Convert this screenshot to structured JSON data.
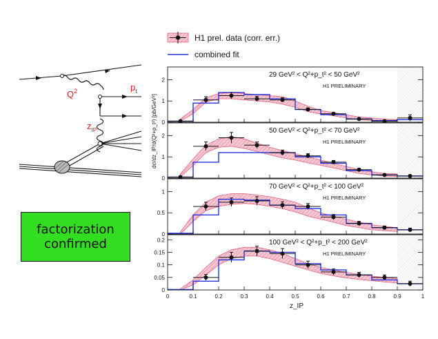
{
  "legend": {
    "data_label": "H1 prel. data (corr. err.)",
    "fit_label": "combined fit"
  },
  "diagram": {
    "label_q2": "Q",
    "label_q2_sup": "2",
    "label_pt": "p",
    "label_pt_sub": "t",
    "label_z": "z",
    "label_z_sub": "IP"
  },
  "box": {
    "line1": "factorization",
    "line2": "confirmed"
  },
  "colors": {
    "band_stroke": "#e0607a",
    "band_fill": "#f6c9d2",
    "fit_line": "#2233dd",
    "label_red": "#e02020",
    "box_green": "#33dd22"
  },
  "chart_data": {
    "type": "line",
    "xlabel": "z_IP",
    "ylabel": "dσ/dz_IP/d(Q²+p_t²) [pb/GeV²]",
    "xlim": [
      0,
      1
    ],
    "x_ticks": [
      "0",
      "0.1",
      "0.2",
      "0.3",
      "0.4",
      "0.5",
      "0.6",
      "0.7",
      "0.8",
      "0.9",
      "1"
    ],
    "shaded_region": [
      0.9,
      1.0
    ],
    "panels": [
      {
        "label": "29 GeV² < Q²+p_t² < 50 GeV²",
        "preliminary": "H1 PRELIMINARY",
        "ylim": [
          0,
          2.6
        ],
        "y_ticks": [
          0,
          1,
          2
        ],
        "y_tick_labels": [
          "0",
          "1",
          "2"
        ],
        "points": [
          {
            "x": 0.05,
            "y": 0.05,
            "err": 0.03
          },
          {
            "x": 0.15,
            "y": 1.05,
            "err": 0.15
          },
          {
            "x": 0.25,
            "y": 1.25,
            "err": 0.15
          },
          {
            "x": 0.35,
            "y": 1.1,
            "err": 0.12
          },
          {
            "x": 0.45,
            "y": 1.05,
            "err": 0.1
          },
          {
            "x": 0.55,
            "y": 0.6,
            "err": 0.07
          },
          {
            "x": 0.65,
            "y": 0.4,
            "err": 0.05
          },
          {
            "x": 0.75,
            "y": 0.15,
            "err": 0.04
          },
          {
            "x": 0.85,
            "y": 0.05,
            "err": 0.04
          },
          {
            "x": 0.95,
            "y": 0.2,
            "err": 0.15
          }
        ],
        "fit_edges": [
          0,
          0.1,
          0.2,
          0.3,
          0.4,
          0.5,
          0.6,
          0.7,
          0.8,
          0.9,
          1.0
        ],
        "fit_values": [
          0.05,
          0.9,
          1.4,
          1.3,
          1.1,
          0.6,
          0.35,
          0.15,
          0.08,
          0.12
        ],
        "band_x": [
          0.05,
          0.1,
          0.15,
          0.2,
          0.25,
          0.3,
          0.35,
          0.4,
          0.45,
          0.5,
          0.55,
          0.6,
          0.65,
          0.7,
          0.75,
          0.8,
          0.85,
          0.9
        ],
        "band_hi": [
          0.15,
          0.6,
          1.15,
          1.35,
          1.4,
          1.35,
          1.3,
          1.25,
          1.2,
          1.0,
          0.75,
          0.55,
          0.45,
          0.35,
          0.25,
          0.2,
          0.15,
          0.12
        ],
        "band_lo": [
          0.05,
          0.4,
          0.95,
          1.1,
          1.1,
          1.05,
          1.0,
          0.95,
          0.85,
          0.7,
          0.5,
          0.38,
          0.3,
          0.2,
          0.12,
          0.08,
          0.05,
          0.05
        ]
      },
      {
        "label": "50 GeV² < Q²+p_t² < 70 GeV²",
        "preliminary": "H1 PRELIMINARY",
        "ylim": [
          0,
          2.6
        ],
        "y_ticks": [
          0,
          1,
          2
        ],
        "y_tick_labels": [
          "0",
          "1",
          "2"
        ],
        "points": [
          {
            "x": 0.05,
            "y": 0.05,
            "err": 0.03
          },
          {
            "x": 0.15,
            "y": 1.5,
            "err": 0.2
          },
          {
            "x": 0.25,
            "y": 1.9,
            "err": 0.25
          },
          {
            "x": 0.35,
            "y": 1.55,
            "err": 0.15
          },
          {
            "x": 0.45,
            "y": 1.2,
            "err": 0.12
          },
          {
            "x": 0.55,
            "y": 1.05,
            "err": 0.1
          },
          {
            "x": 0.65,
            "y": 0.75,
            "err": 0.08
          },
          {
            "x": 0.75,
            "y": 0.4,
            "err": 0.06
          },
          {
            "x": 0.85,
            "y": 0.15,
            "err": 0.04
          },
          {
            "x": 0.95,
            "y": 0.1,
            "err": 0.05
          }
        ],
        "fit_edges": [
          0,
          0.1,
          0.2,
          0.3,
          0.4,
          0.5,
          0.6,
          0.7,
          0.8,
          0.9,
          1.0
        ],
        "fit_values": [
          0.05,
          0.75,
          1.2,
          1.2,
          1.2,
          1.0,
          0.7,
          0.35,
          0.15,
          0.1
        ],
        "band_x": [
          0.05,
          0.1,
          0.15,
          0.2,
          0.25,
          0.3,
          0.35,
          0.4,
          0.45,
          0.5,
          0.55,
          0.6,
          0.65,
          0.7,
          0.75,
          0.8,
          0.85,
          0.9
        ],
        "band_hi": [
          0.2,
          0.9,
          1.55,
          1.85,
          1.95,
          1.85,
          1.65,
          1.45,
          1.3,
          1.15,
          1.0,
          0.85,
          0.7,
          0.55,
          0.4,
          0.3,
          0.22,
          0.2
        ],
        "band_lo": [
          0.05,
          0.6,
          1.2,
          1.45,
          1.5,
          1.4,
          1.25,
          1.1,
          0.95,
          0.85,
          0.72,
          0.6,
          0.48,
          0.35,
          0.22,
          0.15,
          0.1,
          0.08
        ]
      },
      {
        "label": "70 GeV² < Q²+p_t² < 100 GeV²",
        "preliminary": "H1 PRELIMINARY",
        "ylim": [
          0,
          1.3
        ],
        "y_ticks": [
          0,
          0.5,
          1
        ],
        "y_tick_labels": [
          "0",
          "0.5",
          "1"
        ],
        "points": [
          {
            "x": 0.15,
            "y": 0.65,
            "err": 0.1
          },
          {
            "x": 0.25,
            "y": 0.75,
            "err": 0.1
          },
          {
            "x": 0.35,
            "y": 0.78,
            "err": 0.1
          },
          {
            "x": 0.45,
            "y": 0.68,
            "err": 0.08
          },
          {
            "x": 0.55,
            "y": 0.65,
            "err": 0.07
          },
          {
            "x": 0.65,
            "y": 0.4,
            "err": 0.06
          },
          {
            "x": 0.75,
            "y": 0.25,
            "err": 0.05
          },
          {
            "x": 0.85,
            "y": 0.15,
            "err": 0.04
          },
          {
            "x": 0.95,
            "y": 0.1,
            "err": 0.04
          }
        ],
        "fit_edges": [
          0,
          0.1,
          0.2,
          0.3,
          0.4,
          0.5,
          0.6,
          0.7,
          0.8,
          0.9,
          1.0
        ],
        "fit_values": [
          0.02,
          0.45,
          0.82,
          0.8,
          0.68,
          0.6,
          0.45,
          0.25,
          0.15,
          0.1
        ],
        "band_x": [
          0.05,
          0.1,
          0.15,
          0.2,
          0.25,
          0.3,
          0.35,
          0.4,
          0.45,
          0.5,
          0.55,
          0.6,
          0.65,
          0.7,
          0.75,
          0.8,
          0.85,
          0.9
        ],
        "band_hi": [
          0.05,
          0.45,
          0.75,
          0.9,
          0.95,
          0.95,
          0.92,
          0.88,
          0.82,
          0.75,
          0.62,
          0.5,
          0.42,
          0.35,
          0.28,
          0.22,
          0.18,
          0.15
        ],
        "band_lo": [
          0.0,
          0.3,
          0.55,
          0.65,
          0.7,
          0.72,
          0.7,
          0.65,
          0.6,
          0.52,
          0.42,
          0.35,
          0.28,
          0.2,
          0.15,
          0.1,
          0.08,
          0.06
        ]
      },
      {
        "label": "100 GeV² < Q²+p_t² < 200 GeV²",
        "preliminary": "H1 PRELIMINARY",
        "ylim": [
          0,
          0.22
        ],
        "y_ticks": [
          0,
          0.05,
          0.1,
          0.15,
          0.2
        ],
        "y_tick_labels": [
          "0",
          "0.05",
          "0.1",
          "0.15",
          "0.2"
        ],
        "points": [
          {
            "x": 0.15,
            "y": 0.05,
            "err": 0.012
          },
          {
            "x": 0.25,
            "y": 0.13,
            "err": 0.02
          },
          {
            "x": 0.35,
            "y": 0.155,
            "err": 0.02
          },
          {
            "x": 0.45,
            "y": 0.145,
            "err": 0.02
          },
          {
            "x": 0.55,
            "y": 0.1,
            "err": 0.015
          },
          {
            "x": 0.65,
            "y": 0.072,
            "err": 0.012
          },
          {
            "x": 0.75,
            "y": 0.06,
            "err": 0.01
          },
          {
            "x": 0.85,
            "y": 0.05,
            "err": 0.01
          },
          {
            "x": 0.95,
            "y": 0.025,
            "err": 0.01
          }
        ],
        "fit_edges": [
          0,
          0.1,
          0.2,
          0.3,
          0.4,
          0.5,
          0.6,
          0.7,
          0.8,
          0.9,
          1.0
        ],
        "fit_values": [
          0.002,
          0.035,
          0.12,
          0.155,
          0.15,
          0.105,
          0.08,
          0.06,
          0.04,
          0.025
        ],
        "band_x": [
          0.05,
          0.1,
          0.15,
          0.2,
          0.25,
          0.3,
          0.35,
          0.4,
          0.45,
          0.5,
          0.55,
          0.6,
          0.65,
          0.7,
          0.75,
          0.8,
          0.85,
          0.9
        ],
        "band_hi": [
          0.005,
          0.04,
          0.09,
          0.135,
          0.16,
          0.17,
          0.17,
          0.16,
          0.145,
          0.125,
          0.105,
          0.09,
          0.08,
          0.07,
          0.062,
          0.055,
          0.05,
          0.045
        ],
        "band_lo": [
          0.0,
          0.02,
          0.06,
          0.1,
          0.125,
          0.135,
          0.135,
          0.125,
          0.11,
          0.095,
          0.08,
          0.066,
          0.056,
          0.048,
          0.042,
          0.037,
          0.032,
          0.028
        ]
      }
    ]
  }
}
